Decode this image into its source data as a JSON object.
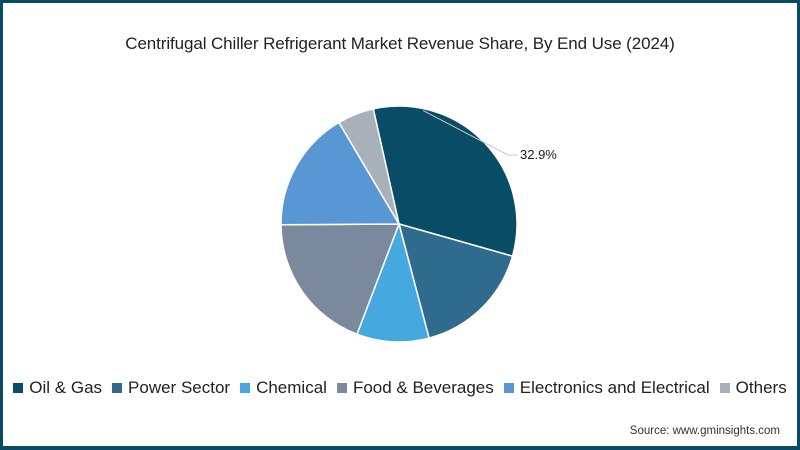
{
  "title": "Centrifugal Chiller Refrigerant Market Revenue Share, By End Use (2024)",
  "source": "Source: www.gminsights.com",
  "frame_color": "#0b4a64",
  "chart_data": {
    "type": "pie",
    "title": "Centrifugal Chiller Refrigerant Market Revenue Share, By End Use (2024)",
    "categories": [
      "Oil & Gas",
      "Power Sector",
      "Chemical",
      "Food & Beverages",
      "Electronics and Electrical",
      "Others"
    ],
    "values": [
      32.9,
      16.5,
      9.9,
      19.1,
      16.6,
      5.0
    ],
    "colors": [
      "#084c66",
      "#2f6b8c",
      "#45a8de",
      "#7a8a9c",
      "#5897d4",
      "#a8b0b9"
    ],
    "annotations": [
      {
        "category": "Oil & Gas",
        "label": "32.9%"
      }
    ],
    "legend_position": "bottom",
    "start_angle_deg": -12.6,
    "center": [
      399,
      224
    ],
    "radius": 118
  },
  "legend": [
    {
      "label": "Oil & Gas",
      "color": "#084c66"
    },
    {
      "label": "Power Sector",
      "color": "#2f6b8c"
    },
    {
      "label": "Chemical",
      "color": "#45a8de"
    },
    {
      "label": "Food & Beverages",
      "color": "#7a8a9c"
    },
    {
      "label": "Electronics and Electrical",
      "color": "#5897d4"
    },
    {
      "label": "Others",
      "color": "#a8b0b9"
    }
  ]
}
